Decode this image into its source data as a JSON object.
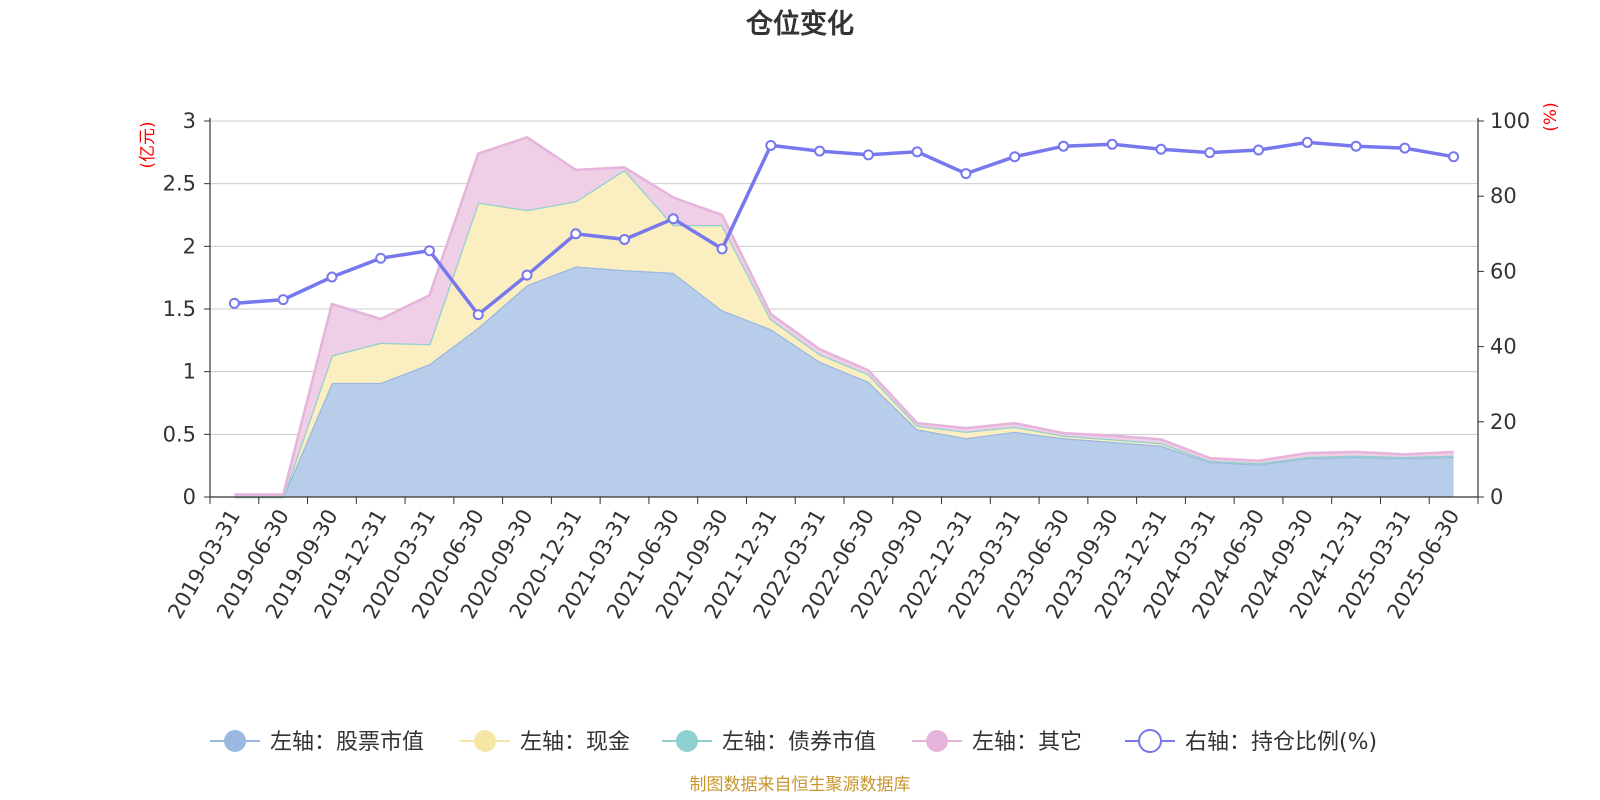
{
  "chart_data": {
    "type": "area",
    "title": "仓位变化",
    "left_axis_unit": "(亿元)",
    "right_axis_unit": "(%)",
    "left_ylim": [
      0,
      3
    ],
    "left_ticks": [
      "0",
      "0.5",
      "1",
      "1.5",
      "2",
      "2.5",
      "3"
    ],
    "right_ylim": [
      0,
      100
    ],
    "right_ticks": [
      "0",
      "20",
      "40",
      "60",
      "80",
      "100"
    ],
    "grid": true,
    "legend_position": "bottom",
    "categories": [
      "2019-03-31",
      "2019-06-30",
      "2019-09-30",
      "2019-12-31",
      "2020-03-31",
      "2020-06-30",
      "2020-09-30",
      "2020-12-31",
      "2021-03-31",
      "2021-06-30",
      "2021-09-30",
      "2021-12-31",
      "2022-03-31",
      "2022-06-30",
      "2022-09-30",
      "2022-12-31",
      "2023-03-31",
      "2023-06-30",
      "2023-09-30",
      "2023-12-31",
      "2024-03-31",
      "2024-06-30",
      "2024-09-30",
      "2024-12-31",
      "2025-03-31",
      "2025-06-30"
    ],
    "series": [
      {
        "name": "左轴：股票市值",
        "axis": "left",
        "stacked": true,
        "color": "#9ab8e0",
        "fill": "#b8cdea",
        "values": [
          0,
          0,
          0.91,
          0.91,
          1.06,
          1.35,
          1.69,
          1.84,
          1.81,
          1.79,
          1.49,
          1.34,
          1.08,
          0.92,
          0.54,
          0.47,
          0.52,
          0.47,
          0.44,
          0.41,
          0.28,
          0.26,
          0.31,
          0.32,
          0.31,
          0.32
        ]
      },
      {
        "name": "左轴：现金",
        "axis": "left",
        "stacked": true,
        "color": "#f6e6a4",
        "fill": "#fbefc1",
        "values": [
          0,
          0,
          0.22,
          0.32,
          0.16,
          1.0,
          0.6,
          0.52,
          0.8,
          0.38,
          0.68,
          0.08,
          0.06,
          0.06,
          0.03,
          0.05,
          0.04,
          0.02,
          0.02,
          0.02,
          0.01,
          0.01,
          0.01,
          0.01,
          0.01,
          0.01
        ]
      },
      {
        "name": "左轴：债券市值",
        "axis": "left",
        "stacked": true,
        "color": "#8fd1d1",
        "fill": "#b5e2e2",
        "values": [
          0,
          0,
          0,
          0,
          0,
          0,
          0,
          0,
          0,
          0,
          0,
          0,
          0,
          0,
          0,
          0,
          0,
          0,
          0,
          0,
          0,
          0,
          0,
          0,
          0,
          0
        ]
      },
      {
        "name": "左轴：其它",
        "axis": "left",
        "stacked": true,
        "color": "#e6b4da",
        "fill": "#efcfe6",
        "values": [
          0.02,
          0.02,
          0.41,
          0.19,
          0.39,
          0.39,
          0.58,
          0.25,
          0.02,
          0.22,
          0.08,
          0.04,
          0.04,
          0.03,
          0.02,
          0.03,
          0.03,
          0.02,
          0.03,
          0.03,
          0.02,
          0.02,
          0.03,
          0.03,
          0.02,
          0.03
        ]
      },
      {
        "name": "右轴：持仓比例(%)",
        "axis": "right",
        "stacked": false,
        "color": "#7777ee",
        "values": [
          51.5,
          52.5,
          58.5,
          63.5,
          65.5,
          48.5,
          59,
          70,
          68.5,
          74,
          66,
          93.5,
          92,
          91,
          91.8,
          86,
          90.5,
          93.3,
          93.8,
          92.5,
          91.6,
          92.3,
          94.3,
          93.3,
          92.8,
          90.5
        ]
      }
    ]
  },
  "footer": {
    "source": "制图数据来自恒生聚源数据库"
  }
}
